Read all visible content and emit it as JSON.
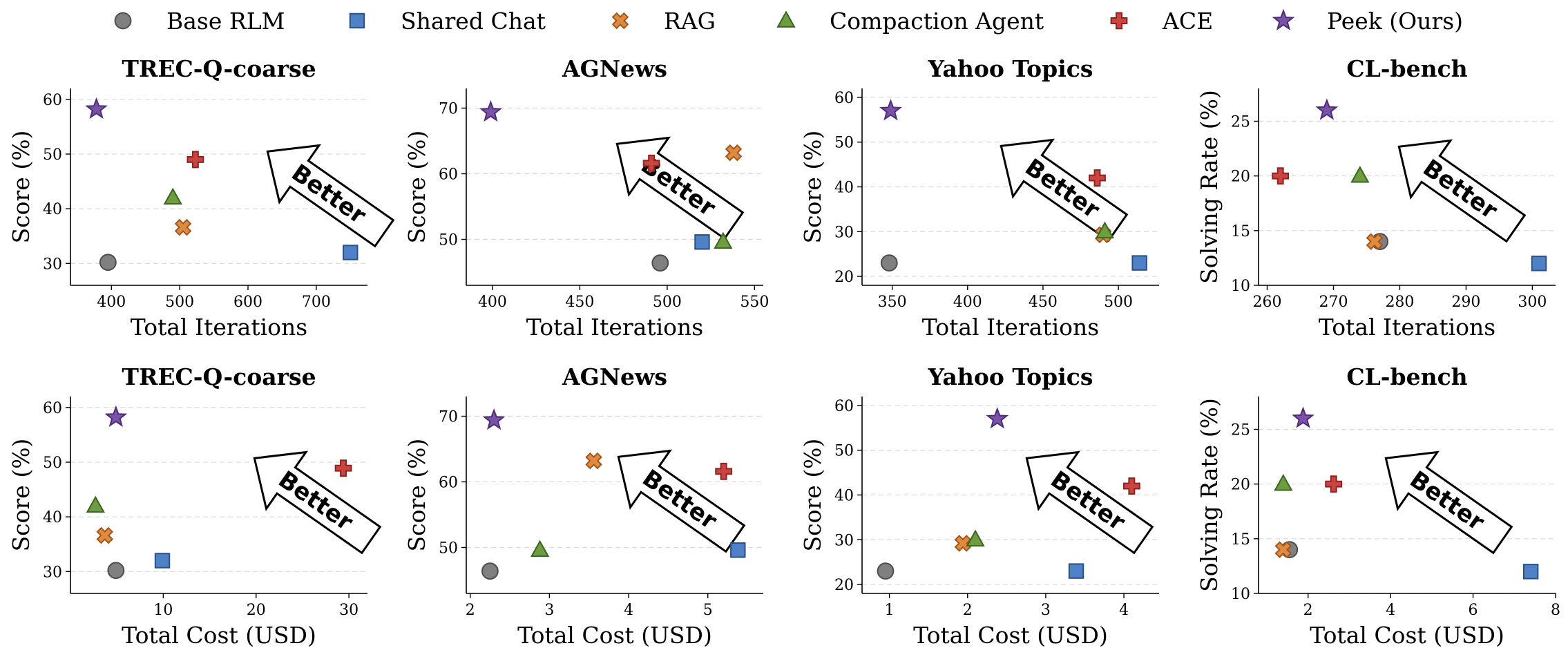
{
  "legend": [
    {
      "name": "Base RLM",
      "marker": "circle",
      "fill": "#808080",
      "stroke": "#4d4d4d"
    },
    {
      "name": "Shared Chat",
      "marker": "square",
      "fill": "#4f81c6",
      "stroke": "#2a4f87"
    },
    {
      "name": "RAG",
      "marker": "x",
      "fill": "#e08a3f",
      "stroke": "#a0561c"
    },
    {
      "name": "Compaction Agent",
      "marker": "triangle",
      "fill": "#6c9d3e",
      "stroke": "#3c6320"
    },
    {
      "name": "ACE",
      "marker": "plus",
      "fill": "#cc4440",
      "stroke": "#8a2420"
    },
    {
      "name": "Peek (Ours)",
      "marker": "star",
      "fill": "#7a52a8",
      "stroke": "#4d2d78"
    }
  ],
  "annotation_text": "Better",
  "chart_data": [
    {
      "type": "scatter",
      "title": "TREC-Q-coarse",
      "xlabel": "Total Iterations",
      "ylabel": "Score (%)",
      "xlim": [
        340,
        775
      ],
      "ylim": [
        26,
        62
      ],
      "xticks": [
        400,
        500,
        600,
        700
      ],
      "yticks": [
        30,
        40,
        50,
        60
      ],
      "grid": "y",
      "points": [
        {
          "series": "Base RLM",
          "x": 395,
          "y": 30.2
        },
        {
          "series": "Shared Chat",
          "x": 750,
          "y": 32
        },
        {
          "series": "RAG",
          "x": 505,
          "y": 36.6
        },
        {
          "series": "Compaction Agent",
          "x": 490,
          "y": 42
        },
        {
          "series": "ACE",
          "x": 523,
          "y": 49
        },
        {
          "series": "Peek (Ours)",
          "x": 378,
          "y": 58.2
        }
      ]
    },
    {
      "type": "scatter",
      "title": "AGNews",
      "xlabel": "Total Iterations",
      "ylabel": "Score (%)",
      "xlim": [
        385,
        555
      ],
      "ylim": [
        43,
        73
      ],
      "xticks": [
        400,
        450,
        500,
        550
      ],
      "yticks": [
        50,
        60,
        70
      ],
      "grid": "y",
      "points": [
        {
          "series": "Base RLM",
          "x": 496,
          "y": 46.4
        },
        {
          "series": "Shared Chat",
          "x": 520,
          "y": 49.6
        },
        {
          "series": "RAG",
          "x": 538,
          "y": 63.2
        },
        {
          "series": "Compaction Agent",
          "x": 532,
          "y": 49.6
        },
        {
          "series": "ACE",
          "x": 491,
          "y": 61.6
        },
        {
          "series": "Peek (Ours)",
          "x": 399,
          "y": 69.4
        }
      ]
    },
    {
      "type": "scatter",
      "title": "Yahoo Topics",
      "xlabel": "Total Iterations",
      "ylabel": "Score (%)",
      "xlim": [
        330,
        527
      ],
      "ylim": [
        18,
        62
      ],
      "xticks": [
        350,
        400,
        450,
        500
      ],
      "yticks": [
        20,
        30,
        40,
        50,
        60
      ],
      "grid": "y",
      "points": [
        {
          "series": "Base RLM",
          "x": 348,
          "y": 23
        },
        {
          "series": "Shared Chat",
          "x": 514,
          "y": 23
        },
        {
          "series": "RAG",
          "x": 490,
          "y": 29.3
        },
        {
          "series": "Compaction Agent",
          "x": 491,
          "y": 30
        },
        {
          "series": "ACE",
          "x": 486,
          "y": 42
        },
        {
          "series": "Peek (Ours)",
          "x": 349,
          "y": 57
        }
      ]
    },
    {
      "type": "scatter",
      "title": "CL-bench",
      "xlabel": "Total Iterations",
      "ylabel": "Solving Rate (%)",
      "xlim": [
        258.7,
        303.5
      ],
      "ylim": [
        10,
        28
      ],
      "xticks": [
        260,
        270,
        280,
        290,
        300
      ],
      "yticks": [
        10,
        15,
        20,
        25
      ],
      "grid": "y",
      "points": [
        {
          "series": "Base RLM",
          "x": 277,
          "y": 14
        },
        {
          "series": "Shared Chat",
          "x": 301,
          "y": 12
        },
        {
          "series": "RAG",
          "x": 276.2,
          "y": 14
        },
        {
          "series": "Compaction Agent",
          "x": 274,
          "y": 20
        },
        {
          "series": "ACE",
          "x": 262,
          "y": 20
        },
        {
          "series": "Peek (Ours)",
          "x": 269,
          "y": 26
        }
      ]
    },
    {
      "type": "scatter",
      "title": "TREC-Q-coarse",
      "xlabel": "Total Cost (USD)",
      "ylabel": "Score (%)",
      "xlim": [
        0,
        32
      ],
      "ylim": [
        26,
        62
      ],
      "xticks": [
        10,
        20,
        30
      ],
      "yticks": [
        30,
        40,
        50,
        60
      ],
      "grid": "y",
      "points": [
        {
          "series": "Base RLM",
          "x": 4.9,
          "y": 30.2
        },
        {
          "series": "Shared Chat",
          "x": 9.9,
          "y": 32
        },
        {
          "series": "RAG",
          "x": 3.7,
          "y": 36.6
        },
        {
          "series": "Compaction Agent",
          "x": 2.7,
          "y": 42
        },
        {
          "series": "ACE",
          "x": 29.4,
          "y": 48.9
        },
        {
          "series": "Peek (Ours)",
          "x": 4.9,
          "y": 58.2
        }
      ]
    },
    {
      "type": "scatter",
      "title": "AGNews",
      "xlabel": "Total Cost (USD)",
      "ylabel": "Score (%)",
      "xlim": [
        1.95,
        5.7
      ],
      "ylim": [
        43,
        73
      ],
      "xticks": [
        2,
        3,
        4,
        5
      ],
      "yticks": [
        50,
        60,
        70
      ],
      "grid": "y",
      "points": [
        {
          "series": "Base RLM",
          "x": 2.25,
          "y": 46.4
        },
        {
          "series": "Shared Chat",
          "x": 5.38,
          "y": 49.6
        },
        {
          "series": "RAG",
          "x": 3.56,
          "y": 63.2
        },
        {
          "series": "Compaction Agent",
          "x": 2.88,
          "y": 49.6
        },
        {
          "series": "ACE",
          "x": 5.2,
          "y": 61.6
        },
        {
          "series": "Peek (Ours)",
          "x": 2.3,
          "y": 69.4
        }
      ]
    },
    {
      "type": "scatter",
      "title": "Yahoo Topics",
      "xlabel": "Total Cost (USD)",
      "ylabel": "Score (%)",
      "xlim": [
        0.65,
        4.45
      ],
      "ylim": [
        18,
        62
      ],
      "xticks": [
        1,
        2,
        3,
        4
      ],
      "yticks": [
        20,
        30,
        40,
        50,
        60
      ],
      "grid": "y",
      "points": [
        {
          "series": "Base RLM",
          "x": 0.95,
          "y": 23
        },
        {
          "series": "Shared Chat",
          "x": 3.39,
          "y": 23
        },
        {
          "series": "RAG",
          "x": 1.94,
          "y": 29.2
        },
        {
          "series": "Compaction Agent",
          "x": 2.1,
          "y": 30
        },
        {
          "series": "ACE",
          "x": 4.1,
          "y": 42
        },
        {
          "series": "Peek (Ours)",
          "x": 2.38,
          "y": 57
        }
      ]
    },
    {
      "type": "scatter",
      "title": "CL-bench",
      "xlabel": "Total Cost (USD)",
      "ylabel": "Solving Rate (%)",
      "xlim": [
        0.8,
        8
      ],
      "ylim": [
        10,
        28
      ],
      "xticks": [
        2,
        4,
        6,
        8
      ],
      "yticks": [
        10,
        15,
        20,
        25
      ],
      "grid": "y",
      "points": [
        {
          "series": "Base RLM",
          "x": 1.55,
          "y": 14
        },
        {
          "series": "Shared Chat",
          "x": 7.4,
          "y": 12
        },
        {
          "series": "RAG",
          "x": 1.4,
          "y": 14
        },
        {
          "series": "Compaction Agent",
          "x": 1.4,
          "y": 20
        },
        {
          "series": "ACE",
          "x": 2.62,
          "y": 20
        },
        {
          "series": "Peek (Ours)",
          "x": 1.88,
          "y": 26
        }
      ]
    }
  ]
}
